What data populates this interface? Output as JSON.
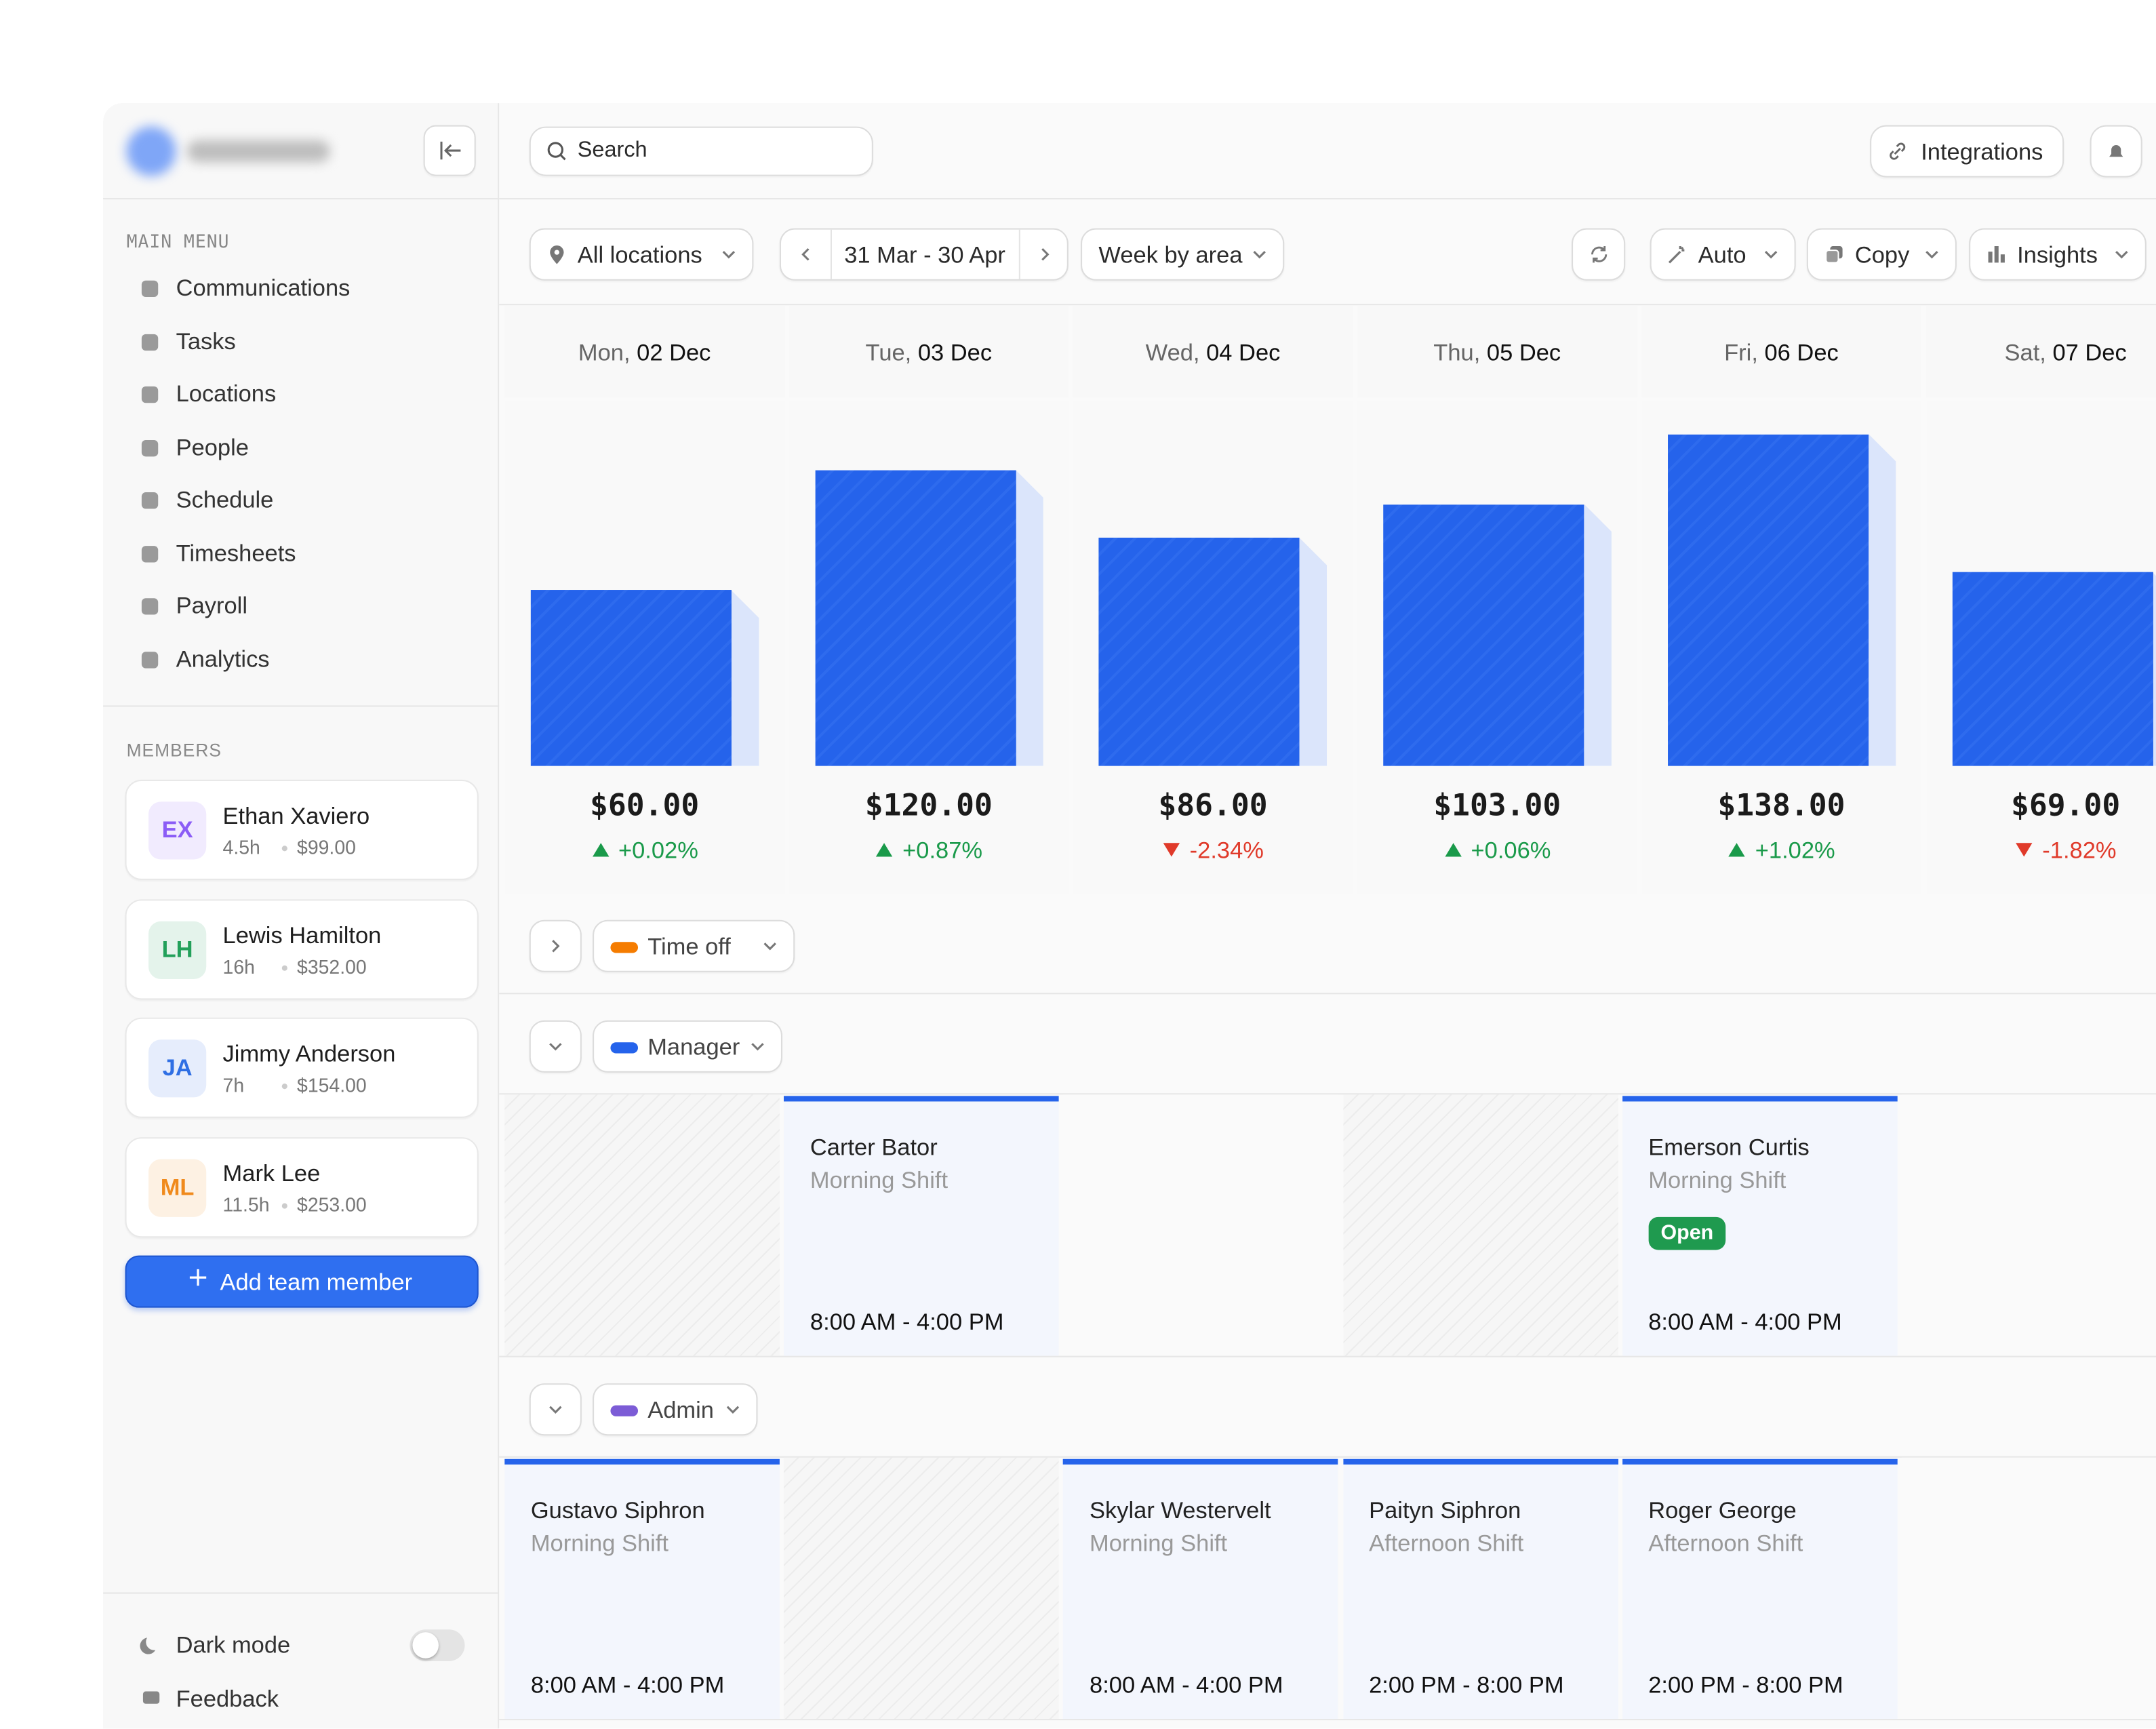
{
  "header": {
    "search_placeholder": "Search",
    "integrations": "Integrations"
  },
  "sidebar": {
    "main_menu_label": "MAIN MENU",
    "menu": [
      "Communications",
      "Tasks",
      "Locations",
      "People",
      "Schedule",
      "Timesheets",
      "Payroll",
      "Analytics"
    ],
    "members_label": "MEMBERS",
    "members": [
      {
        "initials": "EX",
        "name": "Ethan Xaviero",
        "hours": "4.5h",
        "pay": "$99.00",
        "color": "#8b5cf6"
      },
      {
        "initials": "LH",
        "name": "Lewis Hamilton",
        "hours": "16h",
        "pay": "$352.00",
        "color": "#22a05a"
      },
      {
        "initials": "JA",
        "name": "Jimmy Anderson",
        "hours": "7h",
        "pay": "$154.00",
        "color": "#2f6fe4"
      },
      {
        "initials": "ML",
        "name": "Mark Lee",
        "hours": "11.5h",
        "pay": "$253.00",
        "color": "#f08a1c"
      }
    ],
    "add_member": "Add team member",
    "dark_mode": "Dark mode",
    "feedback": "Feedback"
  },
  "toolbar": {
    "location": "All locations",
    "date_range": "31 Mar - 30 Apr",
    "view": "Week by area",
    "auto": "Auto",
    "copy": "Copy",
    "insights": "Insights"
  },
  "days": [
    {
      "weekday": "Mon,",
      "date": "02 Dec",
      "revenue": 60,
      "revenue_label": "$60.00",
      "change": 0.02,
      "change_label": "+0.02%"
    },
    {
      "weekday": "Tue,",
      "date": "03 Dec",
      "revenue": 120,
      "revenue_label": "$120.00",
      "change": 0.87,
      "change_label": "+0.87%"
    },
    {
      "weekday": "Wed,",
      "date": "04 Dec",
      "revenue": 86,
      "revenue_label": "$86.00",
      "change": -2.34,
      "change_label": "-2.34%"
    },
    {
      "weekday": "Thu,",
      "date": "05 Dec",
      "revenue": 103,
      "revenue_label": "$103.00",
      "change": 0.06,
      "change_label": "+0.06%"
    },
    {
      "weekday": "Fri,",
      "date": "06 Dec",
      "revenue": 138,
      "revenue_label": "$138.00",
      "change": 1.02,
      "change_label": "+1.02%"
    },
    {
      "weekday": "Sat,",
      "date": "07 Dec",
      "revenue": 69,
      "revenue_label": "$69.00",
      "change": -1.82,
      "change_label": "-1.82%"
    }
  ],
  "groups": [
    {
      "name": "Time off",
      "color": "#f57c00",
      "cells": []
    },
    {
      "name": "Manager",
      "color": "#2563eb",
      "cells": [
        null,
        {
          "name": "Carter Bator",
          "shift": "Morning Shift",
          "time": "8:00 AM - 4:00 PM"
        },
        null,
        null,
        {
          "name": "Emerson Curtis",
          "shift": "Morning Shift",
          "badge": "Open",
          "time": "8:00 AM - 4:00 PM"
        },
        null
      ]
    },
    {
      "name": "Admin",
      "color": "#7c5cd6",
      "cells": [
        {
          "name": "Gustavo Siphron",
          "shift": "Morning Shift",
          "time": "8:00 AM - 4:00 PM"
        },
        null,
        {
          "name": "Skylar Westervelt",
          "shift": "Morning Shift",
          "time": "8:00 AM - 4:00 PM"
        },
        {
          "name": "Paityn Siphron",
          "shift": "Afternoon Shift",
          "time": "2:00 PM - 8:00 PM"
        },
        {
          "name": "Roger George",
          "shift": "Afternoon Shift",
          "time": "2:00 PM - 8:00 PM"
        },
        null
      ]
    }
  ]
}
